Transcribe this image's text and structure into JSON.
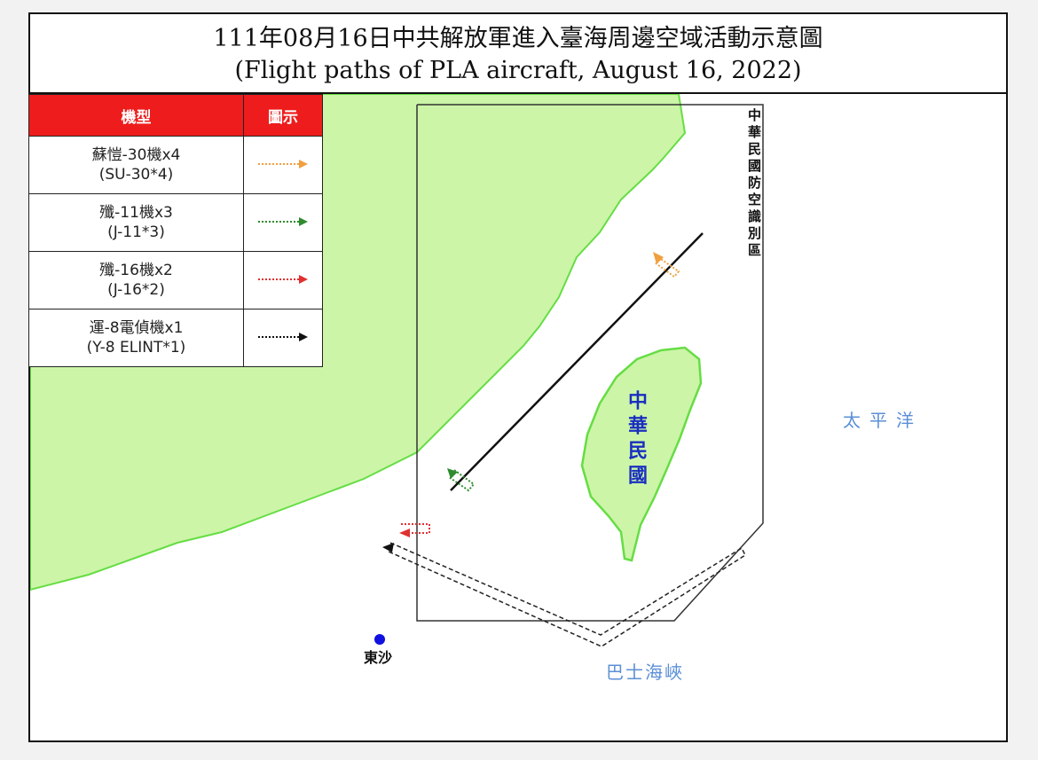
{
  "title": {
    "chinese": "111年08月16日中共解放軍進入臺海周邊空域活動示意圖",
    "english": "(Flight paths of PLA aircraft, August 16, 2022)"
  },
  "legend": {
    "header_type": "機型",
    "header_symbol": "圖示",
    "items": [
      {
        "name_zh": "蘇愷-30機x4",
        "name_en": "(SU-30*4)",
        "color": "#f0a040"
      },
      {
        "name_zh": "殲-11機x3",
        "name_en": "(J-11*3)",
        "color": "#2e8b2e"
      },
      {
        "name_zh": "殲-16機x2",
        "name_en": "(J-16*2)",
        "color": "#e03030"
      },
      {
        "name_zh": "運-8電偵機x1",
        "name_en": "(Y-8 ELINT*1)",
        "color": "#111111"
      }
    ]
  },
  "labels": {
    "adiz": "中華民國防空識別區",
    "taiwan": "中華民國",
    "pacific": "太平洋",
    "bashi": "巴士海峽",
    "dongsha": "東沙"
  },
  "colors": {
    "land": "#ccf5a8",
    "coast": "#66dd44",
    "legend_header": "#ee1c1c",
    "label_blue": "#5b8fd6",
    "taiwan_label": "#1a2fc0"
  }
}
